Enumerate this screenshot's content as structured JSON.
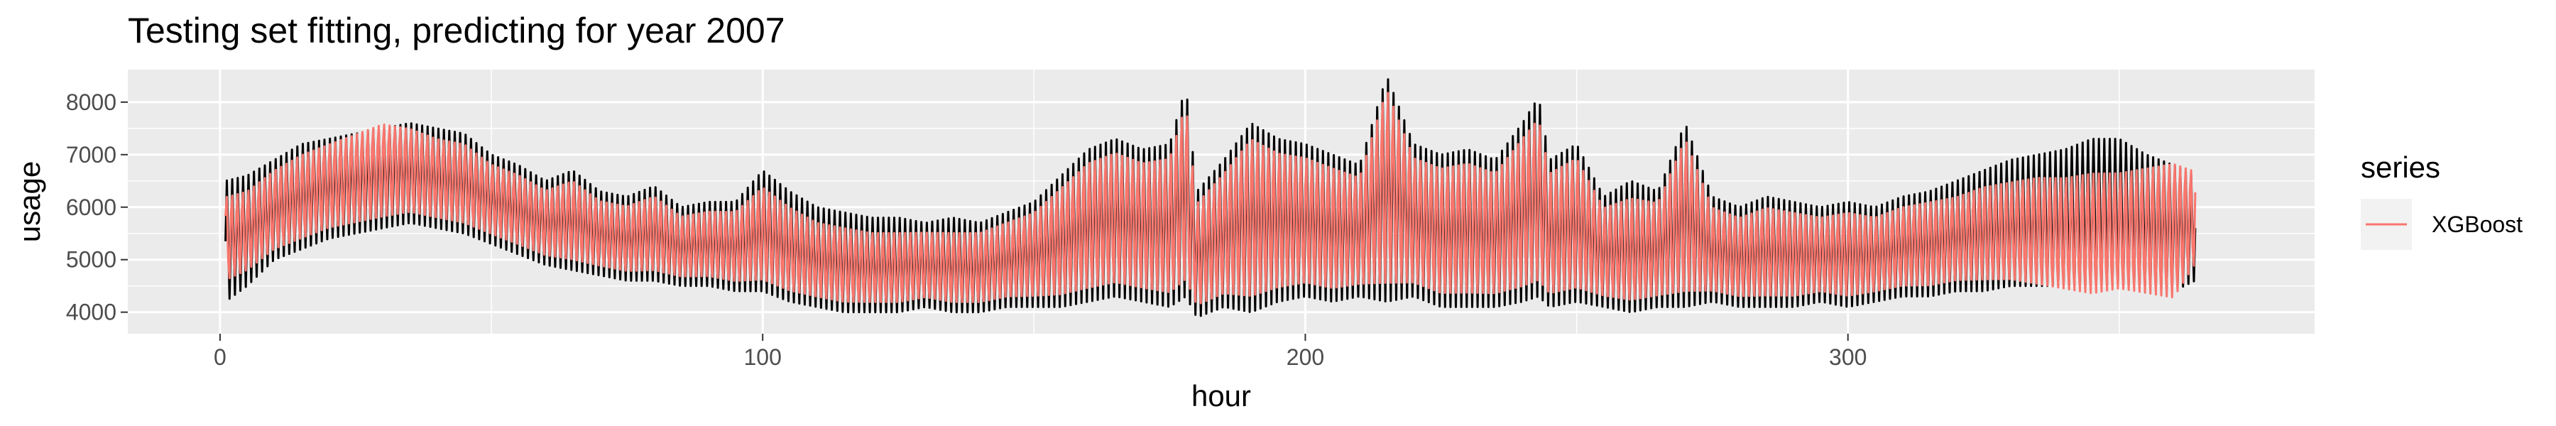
{
  "chart_data": {
    "type": "line",
    "title": "Testing set fitting, predicting for year 2007",
    "xlabel": "hour",
    "ylabel": "usage",
    "xlim": [
      -17,
      386
    ],
    "ylim": [
      3590,
      8620
    ],
    "x_ticks": [
      0,
      100,
      200,
      300
    ],
    "x_tick_labels": [
      "0",
      "100",
      "200",
      "300"
    ],
    "y_ticks": [
      4000,
      5000,
      6000,
      7000,
      8000
    ],
    "y_tick_labels": [
      "4000",
      "5000",
      "6000",
      "7000",
      "8000"
    ],
    "grid": true,
    "legend": {
      "title": "series",
      "placement": "right",
      "entries": [
        "XGBoost"
      ]
    },
    "series": [
      {
        "role": "actual",
        "color": "#000000",
        "x": [
          1,
          5,
          10,
          15,
          20,
          25,
          30,
          35,
          40,
          45,
          50,
          55,
          60,
          65,
          70,
          75,
          80,
          85,
          90,
          95,
          100,
          105,
          110,
          115,
          120,
          125,
          130,
          135,
          140,
          145,
          150,
          155,
          160,
          165,
          170,
          175,
          178,
          180,
          185,
          190,
          195,
          200,
          205,
          210,
          215,
          220,
          225,
          230,
          235,
          240,
          243,
          245,
          250,
          255,
          260,
          265,
          270,
          275,
          280,
          285,
          290,
          295,
          300,
          305,
          310,
          315,
          320,
          325,
          330,
          335,
          340,
          345,
          350,
          355,
          360,
          364
        ],
        "low": [
          4200,
          4500,
          5000,
          5200,
          5400,
          5500,
          5600,
          5700,
          5600,
          5500,
          5300,
          5100,
          4900,
          4800,
          4700,
          4600,
          4600,
          4500,
          4500,
          4400,
          4400,
          4200,
          4100,
          4000,
          4000,
          4000,
          4100,
          4000,
          4000,
          4100,
          4100,
          4100,
          4200,
          4300,
          4200,
          4100,
          4300,
          3900,
          4100,
          4000,
          4200,
          4300,
          4200,
          4300,
          4200,
          4300,
          4100,
          4100,
          4100,
          4200,
          4300,
          4100,
          4200,
          4100,
          4000,
          4100,
          4100,
          4200,
          4100,
          4100,
          4100,
          4200,
          4100,
          4200,
          4300,
          4300,
          4400,
          4400,
          4500,
          4500,
          4500,
          4500,
          4500,
          4500,
          4400,
          4600
        ],
        "high": [
          6500,
          6600,
          6900,
          7200,
          7300,
          7400,
          7500,
          7600,
          7500,
          7400,
          7000,
          6800,
          6500,
          6700,
          6300,
          6200,
          6400,
          6000,
          6100,
          6100,
          6700,
          6300,
          6000,
          5900,
          5800,
          5800,
          5700,
          5800,
          5700,
          5900,
          6100,
          6600,
          7100,
          7300,
          7100,
          7200,
          8300,
          6300,
          6900,
          7600,
          7300,
          7200,
          7000,
          6800,
          8500,
          7200,
          7000,
          7100,
          6900,
          7600,
          8100,
          6900,
          7200,
          6200,
          6500,
          6300,
          7600,
          6200,
          6000,
          6200,
          6100,
          6000,
          6100,
          6000,
          6200,
          6300,
          6500,
          6700,
          6900,
          7000,
          7100,
          7300,
          7300,
          7000,
          6800,
          6600
        ]
      },
      {
        "name": "XGBoost",
        "color": "#f8766d",
        "x": [
          1,
          5,
          10,
          15,
          20,
          25,
          30,
          35,
          40,
          45,
          50,
          55,
          60,
          65,
          70,
          75,
          80,
          85,
          90,
          95,
          100,
          105,
          110,
          115,
          120,
          125,
          130,
          135,
          140,
          145,
          150,
          155,
          160,
          165,
          170,
          175,
          178,
          180,
          185,
          190,
          195,
          200,
          205,
          210,
          215,
          220,
          225,
          230,
          235,
          240,
          243,
          245,
          250,
          255,
          260,
          265,
          270,
          275,
          280,
          285,
          290,
          295,
          300,
          305,
          310,
          315,
          320,
          325,
          330,
          335,
          340,
          345,
          350,
          355,
          360,
          364
        ],
        "low": [
          4500,
          4700,
          5100,
          5300,
          5500,
          5600,
          5700,
          5800,
          5700,
          5600,
          5400,
          5200,
          5000,
          4900,
          4800,
          4700,
          4700,
          4600,
          4600,
          4500,
          4500,
          4300,
          4200,
          4100,
          4100,
          4100,
          4200,
          4100,
          4100,
          4200,
          4200,
          4200,
          4300,
          4400,
          4300,
          4200,
          4400,
          4000,
          4200,
          4100,
          4300,
          4400,
          4300,
          4400,
          4300,
          4400,
          4200,
          4200,
          4200,
          4300,
          4400,
          4200,
          4300,
          4200,
          4100,
          4200,
          4200,
          4300,
          4200,
          4200,
          4200,
          4300,
          4200,
          4300,
          4400,
          4400,
          4500,
          4500,
          4500,
          4400,
          4300,
          4200,
          4300,
          4200,
          4100,
          4800
        ],
        "high": [
          6300,
          6400,
          6800,
          7100,
          7300,
          7500,
          7700,
          7600,
          7400,
          7300,
          6900,
          6700,
          6400,
          6600,
          6200,
          6100,
          6300,
          5900,
          6000,
          6000,
          6500,
          6100,
          5800,
          5700,
          5600,
          5600,
          5600,
          5600,
          5600,
          5800,
          6000,
          6500,
          7000,
          7200,
          7000,
          7100,
          8200,
          6200,
          6800,
          7500,
          7200,
          7100,
          6900,
          6700,
          8500,
          7100,
          6900,
          7000,
          6800,
          7500,
          7900,
          6800,
          7100,
          6100,
          6300,
          6200,
          7500,
          6100,
          5900,
          6100,
          6000,
          5900,
          6000,
          5900,
          6100,
          6200,
          6300,
          6500,
          6600,
          6700,
          6700,
          6800,
          6800,
          6900,
          7000,
          6800
        ]
      }
    ]
  }
}
